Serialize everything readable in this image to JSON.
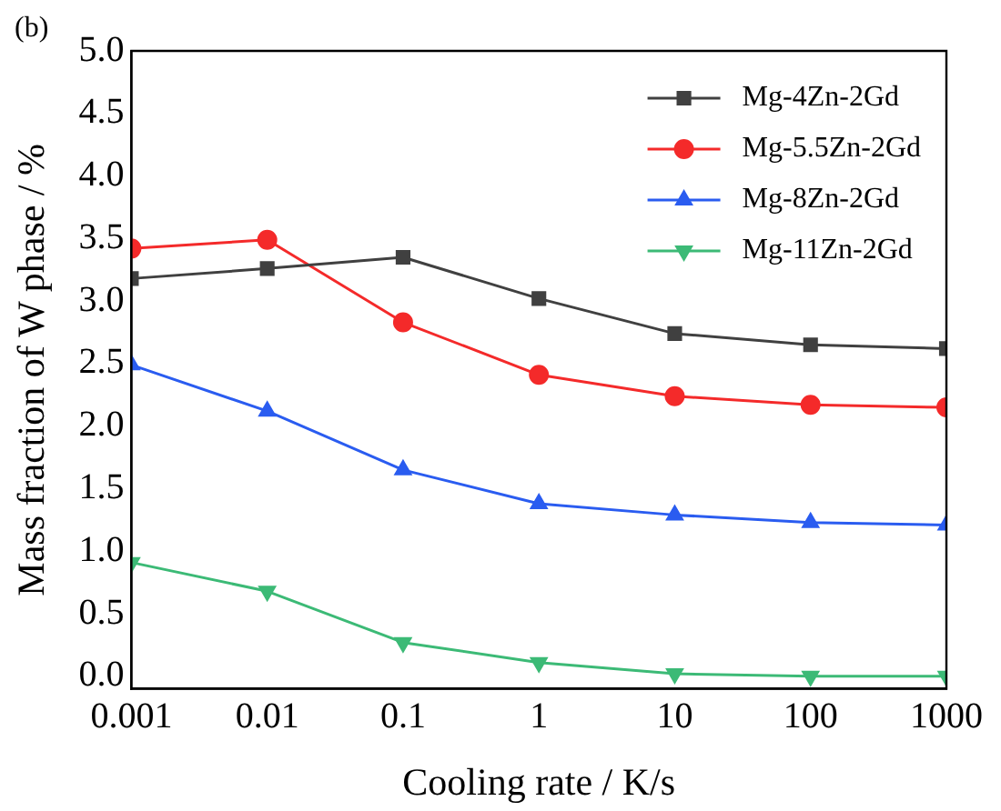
{
  "chart_data": {
    "type": "line",
    "xlabel": "Cooling rate / K/s",
    "ylabel": "Mass fraction of W phase / %",
    "annotations": [
      "(b)"
    ],
    "x": [
      0.001,
      0.01,
      0.1,
      1,
      10,
      100,
      1000
    ],
    "series": [
      {
        "name": "Mg-4Zn-2Gd",
        "color": "#404040",
        "marker": "square",
        "values": [
          3.18,
          3.26,
          3.35,
          3.02,
          2.74,
          2.65,
          2.62
        ]
      },
      {
        "name": "Mg-5.5Zn-2Gd",
        "color": "#f42a2a",
        "marker": "circle",
        "values": [
          3.42,
          3.49,
          2.83,
          2.41,
          2.24,
          2.17,
          2.15
        ]
      },
      {
        "name": "Mg-8Zn-2Gd",
        "color": "#2a5cf0",
        "marker": "triangle",
        "values": [
          2.49,
          2.12,
          1.65,
          1.38,
          1.29,
          1.23,
          1.21
        ]
      },
      {
        "name": "Mg-11Zn-2Gd",
        "color": "#3cba76",
        "marker": "triangle-down",
        "values": [
          0.91,
          0.68,
          0.27,
          0.11,
          0.02,
          0.0,
          0.0
        ]
      }
    ],
    "log": "x",
    "xlim": [
      0.001,
      1000
    ],
    "xticks": [
      0.001,
      0.01,
      0.1,
      1,
      10,
      100,
      1000
    ],
    "ylim": [
      -0.1,
      5.0
    ],
    "yticks": [
      {
        "value": 0,
        "label": "0.0"
      },
      {
        "value": 0.5,
        "label": "0.5"
      },
      {
        "value": 1,
        "label": "1.0"
      },
      {
        "value": 1.5,
        "label": "1.5"
      },
      {
        "value": 2,
        "label": "2.0"
      },
      {
        "value": 2.5,
        "label": "2.5"
      },
      {
        "value": 3,
        "label": "3.0"
      },
      {
        "value": 3.5,
        "label": "3.5"
      },
      {
        "value": 4,
        "label": "4.0"
      },
      {
        "value": 4.5,
        "label": "4.5"
      },
      {
        "value": 5,
        "label": "5.0"
      }
    ],
    "grid": false,
    "legend": "top right",
    "line_style": "solid"
  }
}
